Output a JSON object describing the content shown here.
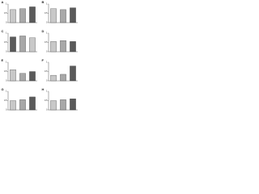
{
  "chart_data": [
    {
      "type": "bar",
      "panel": "A",
      "categories": [
        null,
        null,
        null
      ],
      "values": [
        0.7,
        0.75,
        0.85
      ],
      "colors": [
        "#c8c8c8",
        "#a8a8a8",
        "#5a5a5a"
      ],
      "ylim": [
        0,
        1
      ],
      "yticks": [
        0,
        0.5,
        1
      ]
    },
    {
      "type": "bar",
      "panel": "B",
      "categories": [
        null,
        null,
        null
      ],
      "values": [
        0.75,
        0.7,
        0.8
      ],
      "colors": [
        "#c8c8c8",
        "#a8a8a8",
        "#5a5a5a"
      ],
      "ylim": [
        0,
        1
      ],
      "yticks": [
        0,
        0.5,
        1
      ]
    },
    {
      "type": "bar",
      "panel": "C",
      "categories": [
        null,
        null,
        null
      ],
      "values": [
        0.8,
        0.85,
        0.75
      ],
      "colors": [
        "#5a5a5a",
        "#a8a8a8",
        "#c8c8c8"
      ],
      "ylim": [
        0,
        1
      ],
      "yticks": [
        0,
        0.5,
        1
      ]
    },
    {
      "type": "bar",
      "panel": "D",
      "categories": [
        null,
        null,
        null
      ],
      "values": [
        0.55,
        0.6,
        0.55
      ],
      "colors": [
        "#c8c8c8",
        "#a8a8a8",
        "#5a5a5a"
      ],
      "ylim": [
        0,
        1
      ],
      "yticks": [
        0,
        0.5,
        1
      ]
    },
    {
      "type": "bar",
      "panel": "E",
      "categories": [
        null,
        null,
        null
      ],
      "values": [
        0.6,
        0.4,
        0.5
      ],
      "colors": [
        "#c8c8c8",
        "#a8a8a8",
        "#5a5a5a"
      ],
      "ylim": [
        0,
        1
      ],
      "yticks": [
        0,
        0.5,
        1
      ]
    },
    {
      "type": "bar",
      "panel": "F",
      "categories": [
        null,
        null,
        null
      ],
      "values": [
        0.3,
        0.35,
        0.8
      ],
      "colors": [
        "#c8c8c8",
        "#a8a8a8",
        "#5a5a5a"
      ],
      "ylim": [
        0,
        1
      ],
      "yticks": [
        0,
        0.5,
        1
      ]
    },
    {
      "type": "bar",
      "panel": "G",
      "categories": [
        null,
        null,
        null
      ],
      "values": [
        0.5,
        0.55,
        0.7
      ],
      "colors": [
        "#c8c8c8",
        "#a8a8a8",
        "#5a5a5a"
      ],
      "ylim": [
        0,
        1
      ],
      "yticks": [
        0,
        0.5,
        1
      ]
    },
    {
      "type": "bar",
      "panel": "H",
      "categories": [
        null,
        null,
        null
      ],
      "values": [
        0.5,
        0.55,
        0.6
      ],
      "colors": [
        "#c8c8c8",
        "#a8a8a8",
        "#5a5a5a"
      ],
      "ylim": [
        0,
        1
      ],
      "yticks": [
        0,
        0.5,
        1
      ]
    }
  ]
}
